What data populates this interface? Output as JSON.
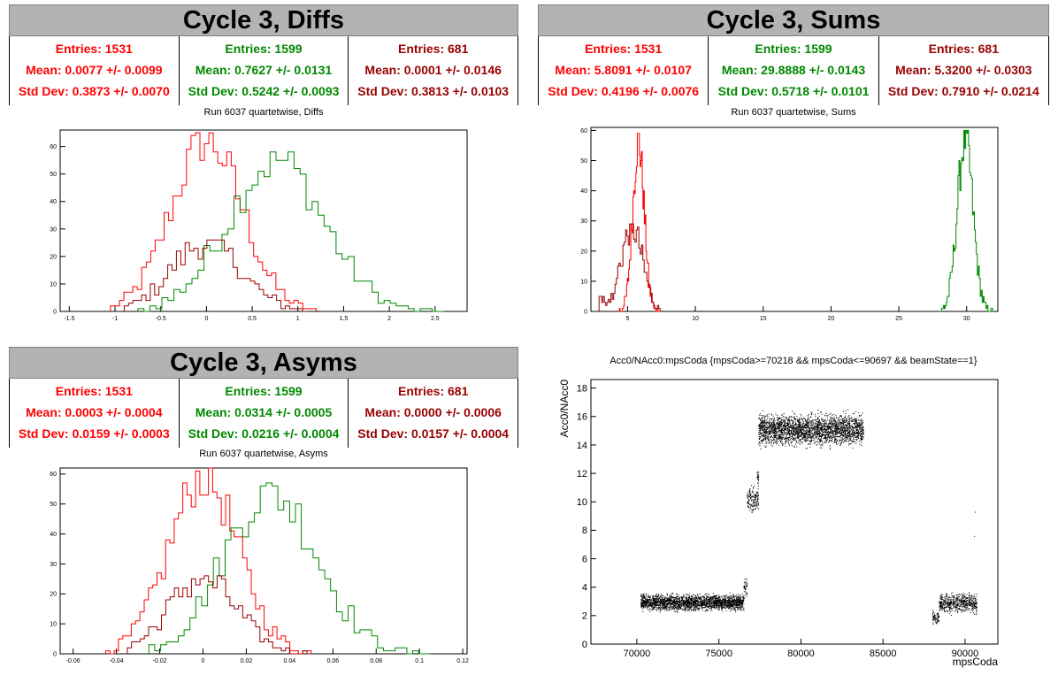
{
  "colors": {
    "red": "#ff0000",
    "green": "#008800",
    "darkred": "#990000",
    "banner": "#b3b3b3"
  },
  "panels": {
    "diffs": {
      "banner": "Cycle 3, Diffs",
      "subtitle": "Run 6037 quartetwise, Diffs",
      "stats": [
        {
          "entries": "Entries: 1531",
          "mean": "Mean: 0.0077 +/- 0.0099",
          "std": "Std Dev: 0.3873 +/- 0.0070",
          "color": "#ff0000"
        },
        {
          "entries": "Entries: 1599",
          "mean": "Mean: 0.7627 +/- 0.0131",
          "std": "Std Dev: 0.5242 +/- 0.0093",
          "color": "#008800"
        },
        {
          "entries": "Entries: 681",
          "mean": "Mean: 0.0001 +/- 0.0146",
          "std": "Std Dev: 0.3813 +/- 0.0103",
          "color": "#990000"
        }
      ]
    },
    "sums": {
      "banner": "Cycle 3, Sums",
      "subtitle": "Run 6037 quartetwise, Sums",
      "stats": [
        {
          "entries": "Entries: 1531",
          "mean": "Mean: 5.8091 +/- 0.0107",
          "std": "Std Dev: 0.4196 +/- 0.0076",
          "color": "#ff0000"
        },
        {
          "entries": "Entries: 1599",
          "mean": "Mean: 29.8888 +/- 0.0143",
          "std": "Std Dev: 0.5718 +/- 0.0101",
          "color": "#008800"
        },
        {
          "entries": "Entries: 681",
          "mean": "Mean: 5.3200 +/- 0.0303",
          "std": "Std Dev: 0.7910 +/- 0.0214",
          "color": "#990000"
        }
      ]
    },
    "asyms": {
      "banner": "Cycle 3, Asyms",
      "subtitle": "Run 6037 quartetwise, Asyms",
      "stats": [
        {
          "entries": "Entries: 1531",
          "mean": "Mean: 0.0003 +/- 0.0004",
          "std": "Std Dev: 0.0159 +/- 0.0003",
          "color": "#ff0000"
        },
        {
          "entries": "Entries: 1599",
          "mean": "Mean: 0.0314 +/- 0.0005",
          "std": "Std Dev: 0.0216 +/- 0.0004",
          "color": "#008800"
        },
        {
          "entries": "Entries: 681",
          "mean": "Mean: 0.0000 +/- 0.0006",
          "std": "Std Dev: 0.0157 +/- 0.0004",
          "color": "#990000"
        }
      ]
    },
    "scatter": {
      "subtitle": "Acc0/NAcc0:mpsCoda {mpsCoda>=70218 && mpsCoda<=90697 && beamState==1}"
    }
  },
  "chart_data": [
    {
      "id": "diffs",
      "type": "histogram",
      "xlim": [
        -1.6,
        2.85
      ],
      "ylim": [
        0,
        66
      ],
      "xticks": [
        -1.5,
        -1,
        -0.5,
        0,
        0.5,
        1,
        1.5,
        2,
        2.5
      ],
      "xticklabels": [
        "-1.5",
        "-1",
        "-0.5",
        "0",
        "0.5",
        "1",
        "1.5",
        "2",
        "2.5"
      ],
      "yticks": [
        0,
        10,
        20,
        30,
        40,
        50,
        60
      ],
      "yticklabels": [
        "0",
        "10",
        "20",
        "30",
        "40",
        "50",
        "60"
      ],
      "series": [
        {
          "color": "#ff0000",
          "mean": 0.0077,
          "sigma": 0.3873,
          "entries": 1531,
          "peak": 62,
          "xmin": -1.05,
          "xmax": 1.2
        },
        {
          "color": "#008800",
          "mean": 0.7627,
          "sigma": 0.5242,
          "entries": 1599,
          "peak": 55,
          "xmin": -0.75,
          "xmax": 2.6
        },
        {
          "color": "#990000",
          "mean": 0.0001,
          "sigma": 0.3813,
          "entries": 681,
          "peak": 25,
          "xmin": -0.9,
          "xmax": 1.1
        }
      ]
    },
    {
      "id": "sums",
      "type": "histogram",
      "xlim": [
        2.3,
        32.3
      ],
      "ylim": [
        0,
        61
      ],
      "xticks": [
        5,
        10,
        15,
        20,
        25,
        30
      ],
      "xticklabels": [
        "5",
        "10",
        "15",
        "20",
        "25",
        "30"
      ],
      "yticks": [
        0,
        10,
        20,
        30,
        40,
        50,
        60
      ],
      "yticklabels": [
        "0",
        "10",
        "20",
        "30",
        "40",
        "50",
        "60"
      ],
      "series": [
        {
          "color": "#ff0000",
          "mean": 5.8091,
          "sigma": 0.4196,
          "entries": 1531,
          "peak": 56,
          "xmin": 4.4,
          "xmax": 7.4
        },
        {
          "color": "#008800",
          "mean": 29.8888,
          "sigma": 0.5718,
          "entries": 1599,
          "peak": 57,
          "xmin": 28.0,
          "xmax": 32.0
        },
        {
          "color": "#990000",
          "mean": 5.32,
          "sigma": 0.791,
          "entries": 681,
          "peak": 28,
          "xmin": 2.9,
          "xmax": 7.4
        }
      ]
    },
    {
      "id": "asyms",
      "type": "histogram",
      "xlim": [
        -0.066,
        0.122
      ],
      "ylim": [
        0,
        62
      ],
      "xticks": [
        -0.06,
        -0.04,
        -0.02,
        0,
        0.02,
        0.04,
        0.06,
        0.08,
        0.1,
        0.12
      ],
      "xticklabels": [
        "-0.06",
        "-0.04",
        "-0.02",
        "0",
        "0.02",
        "0.04",
        "0.06",
        "0.08",
        "0.1",
        "0.12"
      ],
      "yticks": [
        0,
        10,
        20,
        30,
        40,
        50,
        60
      ],
      "yticklabels": [
        "0",
        "10",
        "20",
        "30",
        "40",
        "50",
        "60"
      ],
      "series": [
        {
          "color": "#ff0000",
          "mean": 0.0003,
          "sigma": 0.0159,
          "entries": 1531,
          "peak": 59,
          "xmin": -0.045,
          "xmax": 0.05
        },
        {
          "color": "#008800",
          "mean": 0.0314,
          "sigma": 0.0216,
          "entries": 1599,
          "peak": 54,
          "xmin": -0.025,
          "xmax": 0.105
        },
        {
          "color": "#990000",
          "mean": 0.0,
          "sigma": 0.0157,
          "entries": 681,
          "peak": 25,
          "xmin": -0.035,
          "xmax": 0.05
        }
      ]
    },
    {
      "id": "scatter",
      "type": "scatter",
      "xlabel": "mpsCoda",
      "ylabel": "Acc0/NAcc0",
      "xlim": [
        67200,
        92000
      ],
      "ylim": [
        0,
        18.6
      ],
      "xticks": [
        70000,
        75000,
        80000,
        85000,
        90000
      ],
      "xticklabels": [
        "70000",
        "75000",
        "80000",
        "85000",
        "90000"
      ],
      "yticks": [
        0,
        2,
        4,
        6,
        8,
        10,
        12,
        14,
        16,
        18
      ],
      "yticklabels": [
        "0",
        "2",
        "4",
        "6",
        "8",
        "10",
        "12",
        "14",
        "16",
        "18"
      ],
      "clusters": [
        {
          "x": [
            70218,
            76500
          ],
          "y": [
            2.2,
            3.7
          ],
          "n": 2400
        },
        {
          "x": [
            76500,
            76700
          ],
          "y": [
            3.0,
            5.2
          ],
          "n": 40
        },
        {
          "x": [
            76700,
            77400
          ],
          "y": [
            9.0,
            11.4
          ],
          "n": 160
        },
        {
          "x": [
            77300,
            77400
          ],
          "y": [
            11.0,
            12.6
          ],
          "n": 25
        },
        {
          "x": [
            77400,
            83800
          ],
          "y": [
            13.6,
            16.6
          ],
          "n": 2700
        },
        {
          "x": [
            88000,
            88400
          ],
          "y": [
            1.2,
            2.6
          ],
          "n": 70
        },
        {
          "x": [
            88400,
            90697
          ],
          "y": [
            2.0,
            3.8
          ],
          "n": 600
        }
      ],
      "outliers": [
        [
          90600,
          9.3
        ],
        [
          90550,
          7.6
        ],
        [
          88200,
          1.8
        ]
      ]
    }
  ]
}
